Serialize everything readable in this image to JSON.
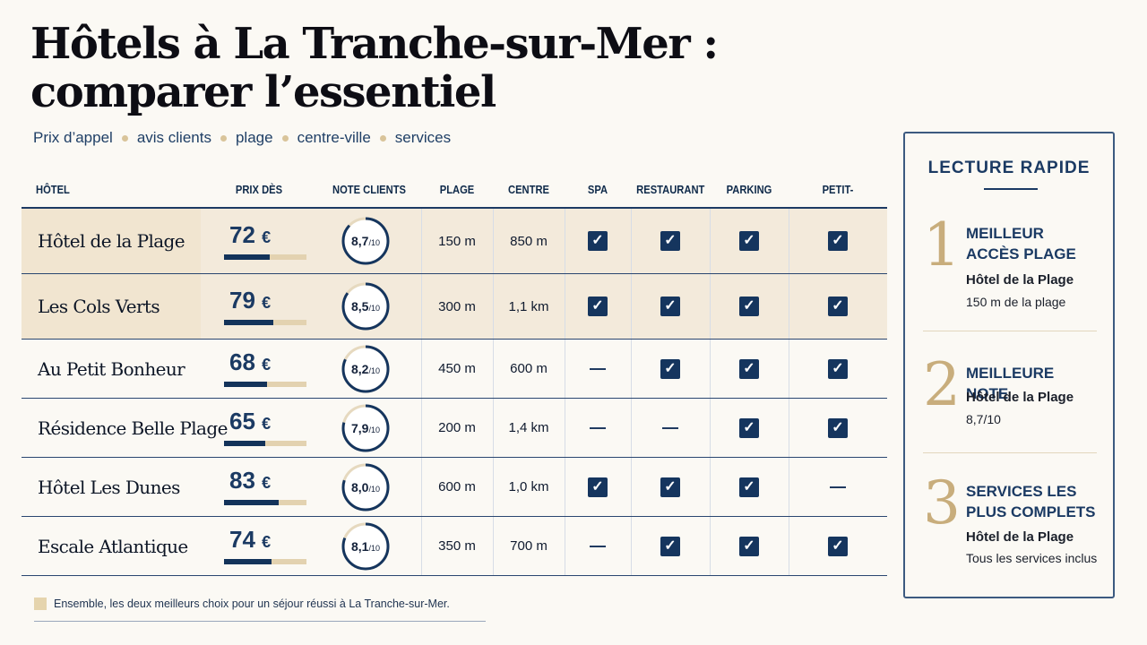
{
  "title": [
    "Hôtels à La Tranche-sur-Mer :",
    "comparer l’essentiel"
  ],
  "subtitle": [
    "Prix d’appel",
    "avis clients",
    "plage",
    "centre-ville",
    "services"
  ],
  "columns": [
    "HÔTEL",
    "PRIX DÈS",
    "NOTE CLIENTS",
    "PLAGE",
    "CENTRE",
    "SPA",
    "RESTAURANT",
    "PARKING",
    "PETIT-DÉJEUNER"
  ],
  "currency": "€",
  "note_suffix": "/10",
  "hotels": [
    {
      "name": "Hôtel de la Plage",
      "price": "72",
      "price_bar_fraction": 0.55,
      "note": "8,7",
      "note_value": 8.7,
      "plage": "150 m",
      "centre": "850 m",
      "spa": true,
      "restaurant": true,
      "parking": true,
      "breakfast": true,
      "highlight": true
    },
    {
      "name": "Les Cols Verts",
      "price": "79",
      "price_bar_fraction": 0.6,
      "note": "8,5",
      "note_value": 8.5,
      "plage": "300 m",
      "centre": "1,1 km",
      "spa": true,
      "restaurant": true,
      "parking": true,
      "breakfast": true,
      "highlight": true
    },
    {
      "name": "Au Petit Bonheur",
      "price": "68",
      "price_bar_fraction": 0.52,
      "note": "8,2",
      "note_value": 8.2,
      "plage": "450 m",
      "centre": "600 m",
      "spa": false,
      "restaurant": true,
      "parking": true,
      "breakfast": true,
      "highlight": false
    },
    {
      "name": "Résidence Belle Plage",
      "price": "65",
      "price_bar_fraction": 0.5,
      "note": "7,9",
      "note_value": 7.9,
      "plage": "200 m",
      "centre": "1,4 km",
      "spa": false,
      "restaurant": false,
      "parking": true,
      "breakfast": true,
      "highlight": false
    },
    {
      "name": "Hôtel Les Dunes",
      "price": "83",
      "price_bar_fraction": 0.66,
      "note": "8,0",
      "note_value": 8.0,
      "plage": "600 m",
      "centre": "1,0 km",
      "spa": true,
      "restaurant": true,
      "parking": true,
      "breakfast": false,
      "highlight": false
    },
    {
      "name": "Escale Atlantique",
      "price": "74",
      "price_bar_fraction": 0.58,
      "note": "8,1",
      "note_value": 8.1,
      "plage": "350 m",
      "centre": "700 m",
      "spa": false,
      "restaurant": true,
      "parking": true,
      "breakfast": true,
      "highlight": false
    }
  ],
  "legend": "Ensemble, les deux meilleurs choix pour un séjour réussi à La Tranche-sur-Mer.",
  "panel": {
    "title": "LECTURE RAPIDE",
    "items": [
      {
        "num": "1",
        "head": "MEILLEUR ACCÈS PLAGE",
        "hotel": "Hôtel de la Plage",
        "detail": "150 m de la plage"
      },
      {
        "num": "2",
        "head": "MEILLEURE NOTE",
        "hotel": "Hôtel de la Plage",
        "detail": "8,7/10"
      },
      {
        "num": "3",
        "head": "SERVICES LES PLUS COMPLETS",
        "hotel": "Hôtel de la Plage",
        "detail": "Tous les services inclus"
      }
    ]
  },
  "colors": {
    "navy": "#15355e",
    "gold": "#c8ad7c",
    "highlight": "#f3eadb",
    "ring_track": "#e6d9bf"
  }
}
